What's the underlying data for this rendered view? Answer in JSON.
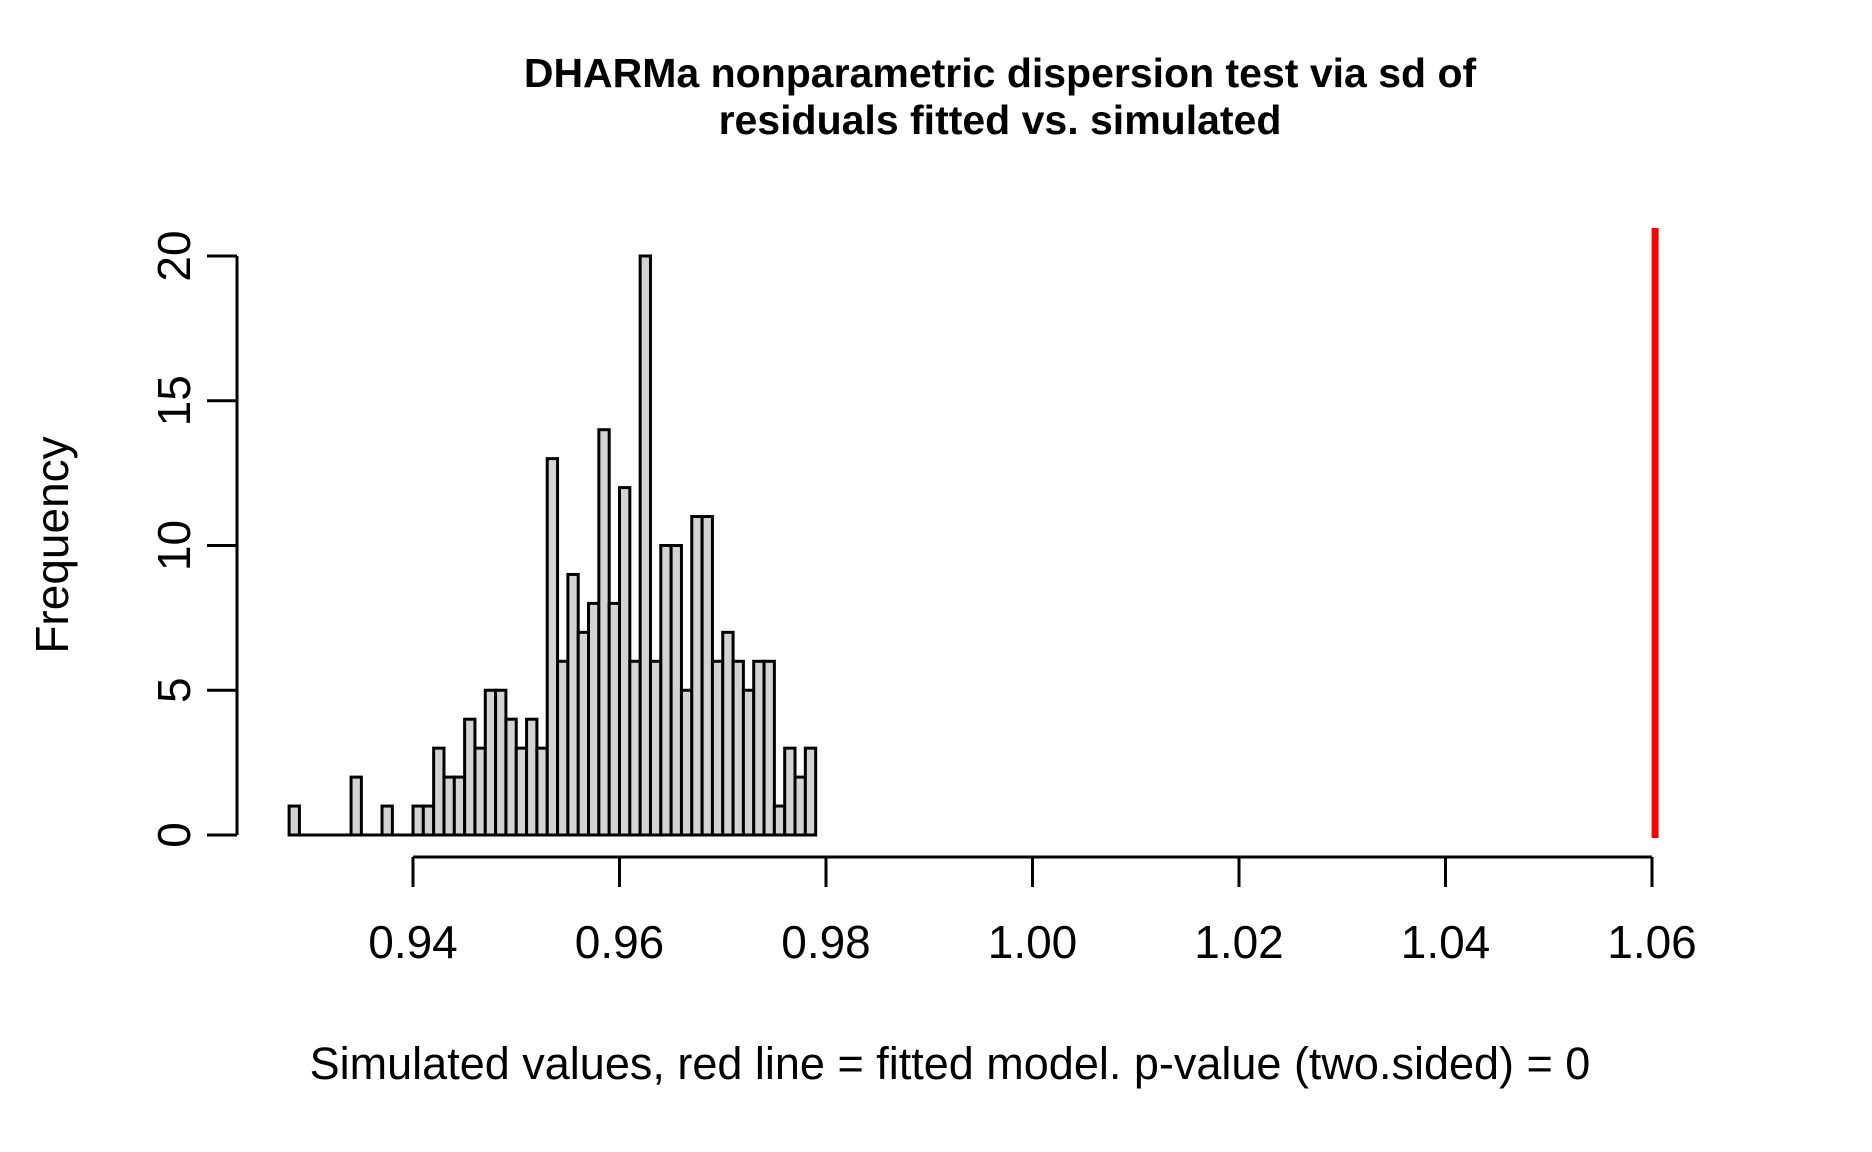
{
  "chart_data": {
    "type": "histogram",
    "title_line1": "DHARMa nonparametric dispersion test via sd of",
    "title_line2": "residuals fitted vs. simulated",
    "xlabel": "Simulated values, red line = fitted model. p-value (two.sided) = 0",
    "ylabel": "Frequency",
    "p_value_shown": "0",
    "alternative_shown": "two.sided",
    "bin_start": 0.928,
    "bin_width": 0.001,
    "counts": [
      1,
      0,
      0,
      0,
      0,
      0,
      2,
      0,
      0,
      1,
      0,
      0,
      1,
      1,
      3,
      2,
      2,
      4,
      3,
      5,
      5,
      4,
      3,
      4,
      3,
      13,
      6,
      9,
      7,
      8,
      14,
      8,
      12,
      6,
      20,
      6,
      10,
      10,
      5,
      11,
      11,
      6,
      7,
      6,
      5,
      6,
      6,
      1,
      3,
      2,
      3
    ],
    "x_ticks": [
      {
        "value": 0.94,
        "label": "0.94"
      },
      {
        "value": 0.96,
        "label": "0.96"
      },
      {
        "value": 0.98,
        "label": "0.98"
      },
      {
        "value": 1.0,
        "label": "1.00"
      },
      {
        "value": 1.02,
        "label": "1.02"
      },
      {
        "value": 1.04,
        "label": "1.04"
      },
      {
        "value": 1.06,
        "label": "1.06"
      }
    ],
    "y_ticks": [
      {
        "value": 0,
        "label": "0"
      },
      {
        "value": 5,
        "label": "5"
      },
      {
        "value": 10,
        "label": "10"
      },
      {
        "value": 15,
        "label": "15"
      },
      {
        "value": 20,
        "label": "20"
      }
    ],
    "xlim": [
      0.94,
      1.06
    ],
    "ylim": [
      0,
      20
    ],
    "red_line_x": 1.0603,
    "grid": false,
    "legend": "none",
    "colors": {
      "bar_fill": "#d3d3d3",
      "bar_stroke": "#000000",
      "axis": "#000000",
      "red_line": "#ff0000",
      "background": "#ffffff"
    }
  }
}
